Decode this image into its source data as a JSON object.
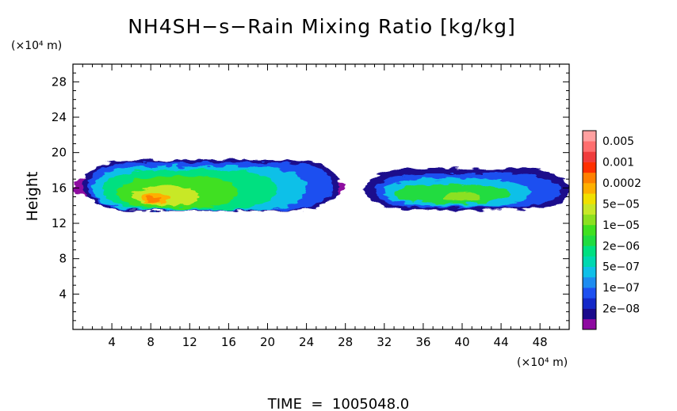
{
  "chart_data": {
    "type": "heatmap",
    "title": "NH4SH−s−Rain Mixing Ratio [kg/kg]",
    "ylabel": "Height",
    "y_unit": "(×10⁴ m)",
    "x_unit": "(×10⁴ m)",
    "xlim": [
      0,
      51
    ],
    "ylim": [
      0,
      30
    ],
    "x_ticks": [
      "4",
      "8",
      "12",
      "16",
      "20",
      "24",
      "28",
      "32",
      "36",
      "40",
      "44",
      "48"
    ],
    "y_ticks": [
      "4",
      "8",
      "12",
      "16",
      "20",
      "24",
      "28"
    ],
    "footer": "TIME  =  1005048.0",
    "colorbar": {
      "levels": [
        {
          "label": "",
          "color": "#8e0aa0"
        },
        {
          "label": "2e−08",
          "color": "#1a0a8c"
        },
        {
          "label": "",
          "color": "#1428c8"
        },
        {
          "label": "1e−07",
          "color": "#1e50f0"
        },
        {
          "label": "",
          "color": "#1e8cf0"
        },
        {
          "label": "5e−07",
          "color": "#10c0e8"
        },
        {
          "label": "",
          "color": "#00d8b0"
        },
        {
          "label": "2e−06",
          "color": "#00e080"
        },
        {
          "label": "",
          "color": "#20dc40"
        },
        {
          "label": "1e−05",
          "color": "#40e020"
        },
        {
          "label": "",
          "color": "#8ce020"
        },
        {
          "label": "5e−05",
          "color": "#c8e828"
        },
        {
          "label": "",
          "color": "#f0e000"
        },
        {
          "label": "0.0002",
          "color": "#ffb000"
        },
        {
          "label": "",
          "color": "#ff8000"
        },
        {
          "label": "0.001",
          "color": "#ff3000"
        },
        {
          "label": "",
          "color": "#f03c3c"
        },
        {
          "label": "0.005",
          "color": "#ff6e6e"
        },
        {
          "label": "",
          "color": "#ffa0a0"
        }
      ]
    },
    "field_regions": [
      {
        "level": 0,
        "x": [
          0.0,
          28.0
        ],
        "y": [
          14.5,
          17.8
        ]
      },
      {
        "level": 1,
        "x": [
          1.0,
          27.5
        ],
        "y": [
          13.4,
          19.2
        ]
      },
      {
        "level": 3,
        "x": [
          1.5,
          26.8
        ],
        "y": [
          13.5,
          18.9
        ]
      },
      {
        "level": 5,
        "x": [
          2.0,
          24.0
        ],
        "y": [
          13.5,
          18.4
        ]
      },
      {
        "level": 7,
        "x": [
          3.0,
          21.0
        ],
        "y": [
          13.6,
          18.0
        ]
      },
      {
        "level": 9,
        "x": [
          4.5,
          17.0
        ],
        "y": [
          13.7,
          17.3
        ]
      },
      {
        "level": 11,
        "x": [
          6.0,
          13.0
        ],
        "y": [
          14.0,
          16.2
        ]
      },
      {
        "level": 13,
        "x": [
          7.0,
          10.0
        ],
        "y": [
          14.2,
          15.4
        ]
      },
      {
        "level": 14,
        "x": [
          7.5,
          9.0
        ],
        "y": [
          14.4,
          15.0
        ]
      },
      {
        "level": 1,
        "x": [
          30.0,
          51.0
        ],
        "y": [
          13.5,
          18.2
        ]
      },
      {
        "level": 3,
        "x": [
          31.0,
          50.0
        ],
        "y": [
          13.8,
          17.6
        ]
      },
      {
        "level": 5,
        "x": [
          32.0,
          47.0
        ],
        "y": [
          14.0,
          17.0
        ]
      },
      {
        "level": 8,
        "x": [
          33.0,
          45.0
        ],
        "y": [
          14.3,
          16.4
        ]
      },
      {
        "level": 10,
        "x": [
          38.0,
          42.0
        ],
        "y": [
          14.5,
          15.5
        ]
      }
    ]
  }
}
